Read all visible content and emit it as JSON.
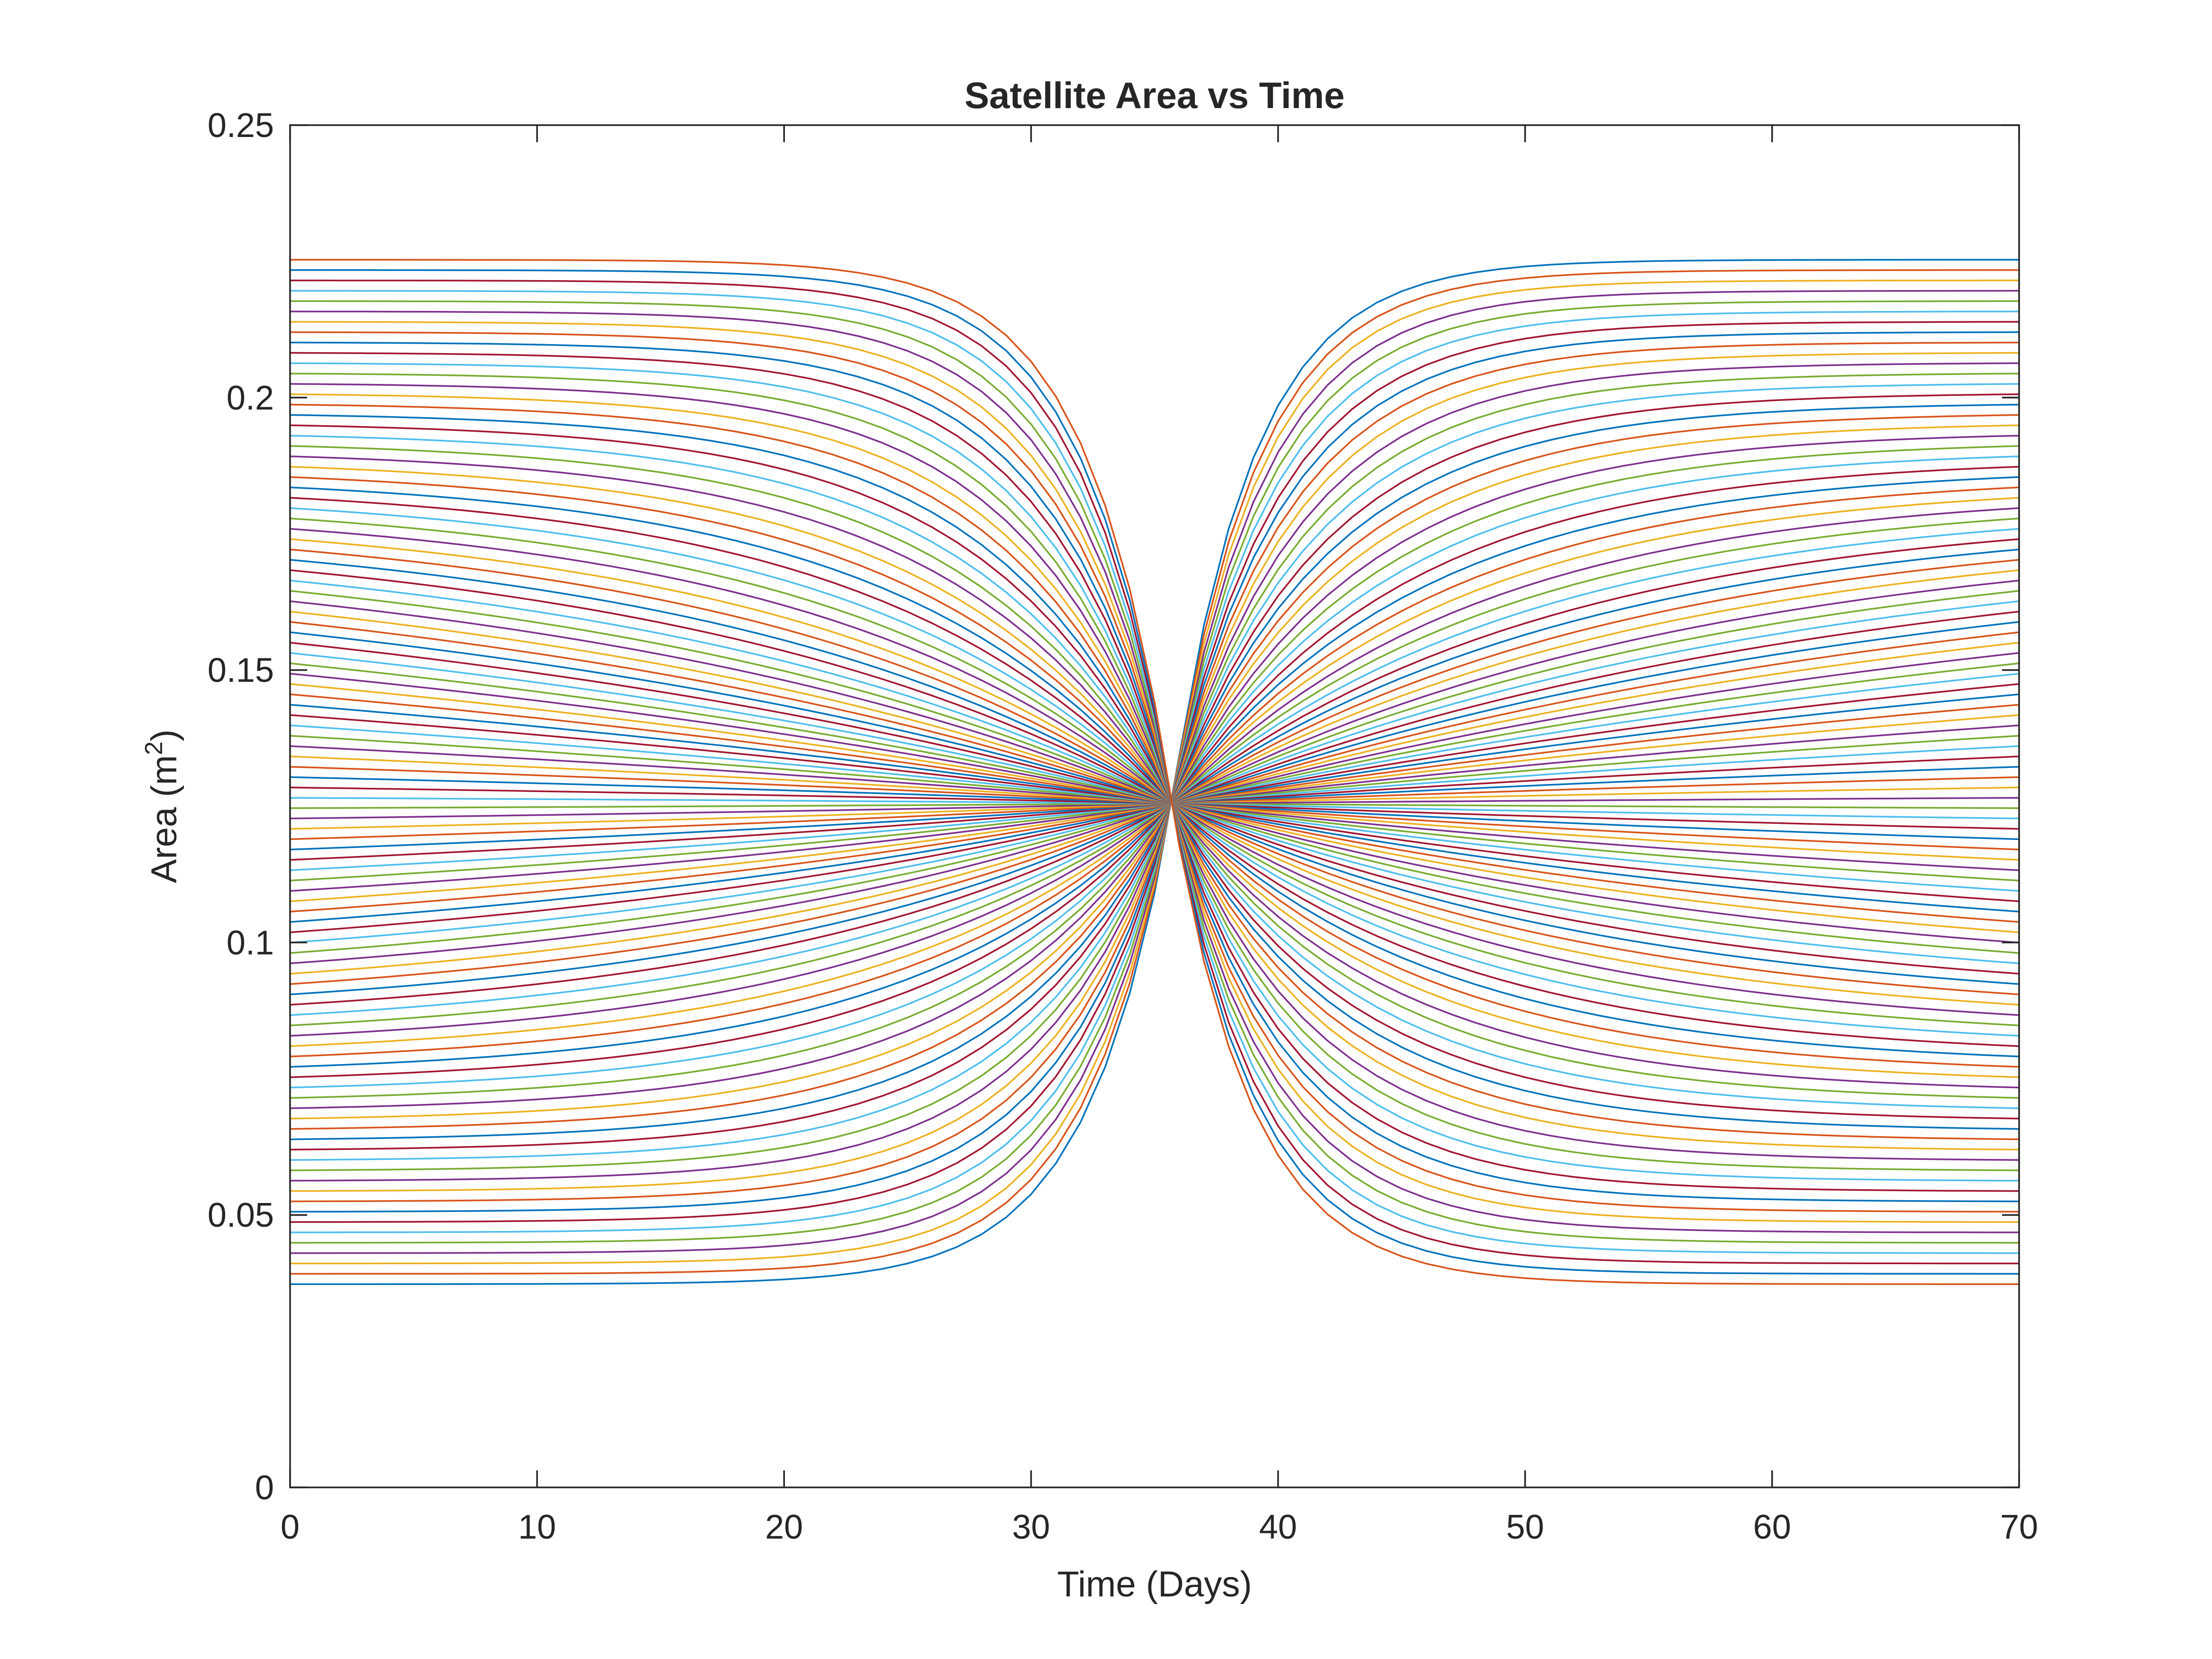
{
  "chart_data": {
    "type": "line",
    "title": "Satellite Area vs Time",
    "xlabel": "Time (Days)",
    "ylabel": "Area (m²)",
    "ylabel_base": "Area (m",
    "ylabel_sup": "2",
    "ylabel_close": ")",
    "xlim": [
      0,
      70
    ],
    "ylim": [
      0,
      0.25
    ],
    "x_ticks": [
      0,
      10,
      20,
      30,
      40,
      50,
      60,
      70
    ],
    "x_tick_labels": [
      "0",
      "10",
      "20",
      "30",
      "40",
      "50",
      "60",
      "70"
    ],
    "y_ticks": [
      0,
      0.05,
      0.1,
      0.15,
      0.2,
      0.25
    ],
    "y_tick_labels": [
      "0",
      "0.05",
      "0.1",
      "0.15",
      "0.2",
      "0.25"
    ],
    "grid": false,
    "legend": "none",
    "color_order": [
      "#0072BD",
      "#D95319",
      "#EDB120",
      "#7E2F8E",
      "#77AC30",
      "#4DBEEE",
      "#A2142F"
    ],
    "family": {
      "description_of_values": "Family of ~100 curves; each starts at an area value between the minimum and maximum, converges to the common value at the crossover day, then diverges to the mirrored value by day 70.",
      "area_min": 0.0373,
      "area_max": 0.2253,
      "area_crossover": 0.1255,
      "crossover_day": 35.7,
      "curve_count": 100,
      "day_step": 1
    }
  }
}
